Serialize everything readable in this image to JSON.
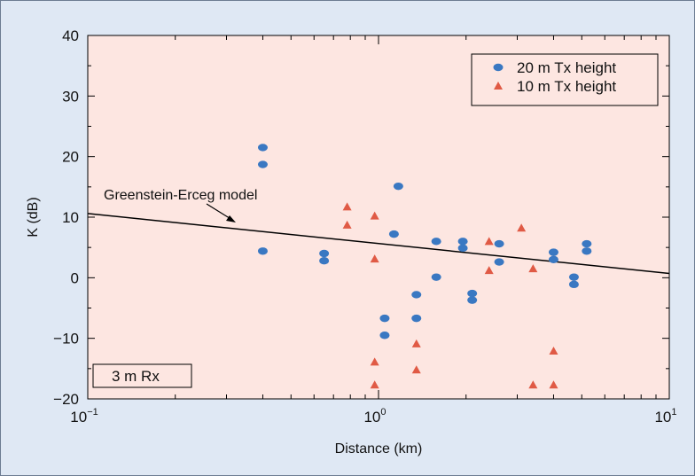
{
  "colors": {
    "frame_background": "#dfe8f4",
    "plot_background": "#fde6e1",
    "series_20m": "#3a78c2",
    "series_10m": "#e05a45",
    "model_line": "#000000"
  },
  "chart_data": {
    "type": "scatter",
    "xscale": "log",
    "xlim": [
      0.1,
      10
    ],
    "ylim": [
      -20,
      40
    ],
    "xlabel": "Distance (km)",
    "ylabel": "K (dB)",
    "grid": false,
    "legend_position": "top-right",
    "x_ticks": [
      {
        "value": 0.1,
        "base": "10",
        "exp": "−1"
      },
      {
        "value": 1,
        "base": "10",
        "exp": "0"
      },
      {
        "value": 10,
        "base": "10",
        "exp": "1"
      }
    ],
    "y_ticks": [
      -20,
      -10,
      0,
      10,
      20,
      30,
      40
    ],
    "series": [
      {
        "name": "20 m Tx height",
        "marker": "ellipse",
        "points": [
          [
            0.4,
            21.5
          ],
          [
            0.4,
            18.7
          ],
          [
            0.4,
            4.4
          ],
          [
            0.65,
            4.0
          ],
          [
            0.65,
            2.8
          ],
          [
            1.05,
            -6.7
          ],
          [
            1.05,
            -9.5
          ],
          [
            1.13,
            7.2
          ],
          [
            1.17,
            15.1
          ],
          [
            1.35,
            -2.8
          ],
          [
            1.35,
            -6.7
          ],
          [
            1.58,
            6.0
          ],
          [
            1.58,
            0.1
          ],
          [
            1.95,
            6.0
          ],
          [
            1.95,
            4.9
          ],
          [
            2.1,
            -2.6
          ],
          [
            2.1,
            -3.7
          ],
          [
            2.6,
            5.6
          ],
          [
            2.6,
            2.6
          ],
          [
            4.0,
            4.2
          ],
          [
            4.0,
            3.0
          ],
          [
            4.7,
            0.1
          ],
          [
            4.7,
            -1.1
          ],
          [
            5.2,
            5.6
          ],
          [
            5.2,
            4.4
          ]
        ]
      },
      {
        "name": "10 m Tx height",
        "marker": "triangle",
        "points": [
          [
            0.78,
            11.7
          ],
          [
            0.78,
            8.7
          ],
          [
            0.97,
            10.2
          ],
          [
            0.97,
            3.1
          ],
          [
            0.97,
            -13.9
          ],
          [
            0.97,
            -17.7
          ],
          [
            1.35,
            -10.9
          ],
          [
            1.35,
            -15.2
          ],
          [
            2.4,
            6.0
          ],
          [
            2.4,
            1.2
          ],
          [
            3.1,
            8.2
          ],
          [
            3.4,
            1.5
          ],
          [
            3.4,
            -17.7
          ],
          [
            4.0,
            -12.1
          ],
          [
            4.0,
            -17.7
          ]
        ]
      }
    ],
    "model_line": {
      "label": "Greenstein-Erceg model",
      "points": [
        [
          0.1,
          10.6
        ],
        [
          10,
          0.7
        ]
      ]
    },
    "annotation_box": "3 m Rx"
  }
}
